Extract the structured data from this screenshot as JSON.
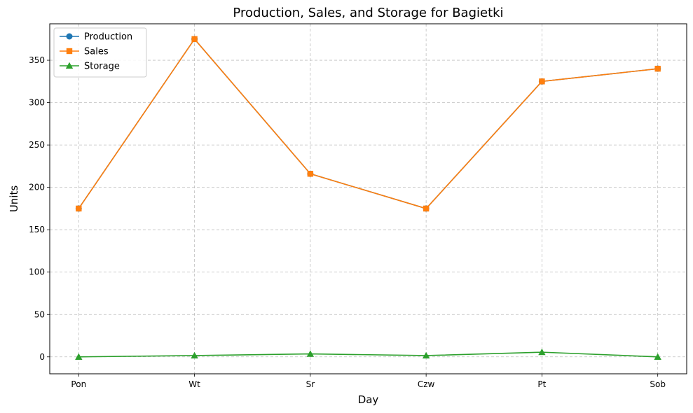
{
  "chart_data": {
    "type": "line",
    "title": "Production, Sales, and Storage for Bagietki",
    "xlabel": "Day",
    "ylabel": "Units",
    "categories": [
      "Pon",
      "Wt",
      "Sr",
      "Czw",
      "Pt",
      "Sob"
    ],
    "ylim": [
      -20,
      393
    ],
    "yticks": [
      0,
      50,
      100,
      150,
      200,
      250,
      300,
      350
    ],
    "grid": true,
    "legend_position": "top-left",
    "series": [
      {
        "name": "Production",
        "values": [
          175,
          375,
          216,
          175,
          325,
          340
        ],
        "color": "#1f77b4",
        "marker": "circle"
      },
      {
        "name": "Sales",
        "values": [
          175,
          375,
          216,
          175,
          325,
          340
        ],
        "color": "#ff7f0e",
        "marker": "square"
      },
      {
        "name": "Storage",
        "values": [
          0,
          1.5,
          3.5,
          1.5,
          5.5,
          0
        ],
        "color": "#2ca02c",
        "marker": "triangle"
      }
    ]
  }
}
